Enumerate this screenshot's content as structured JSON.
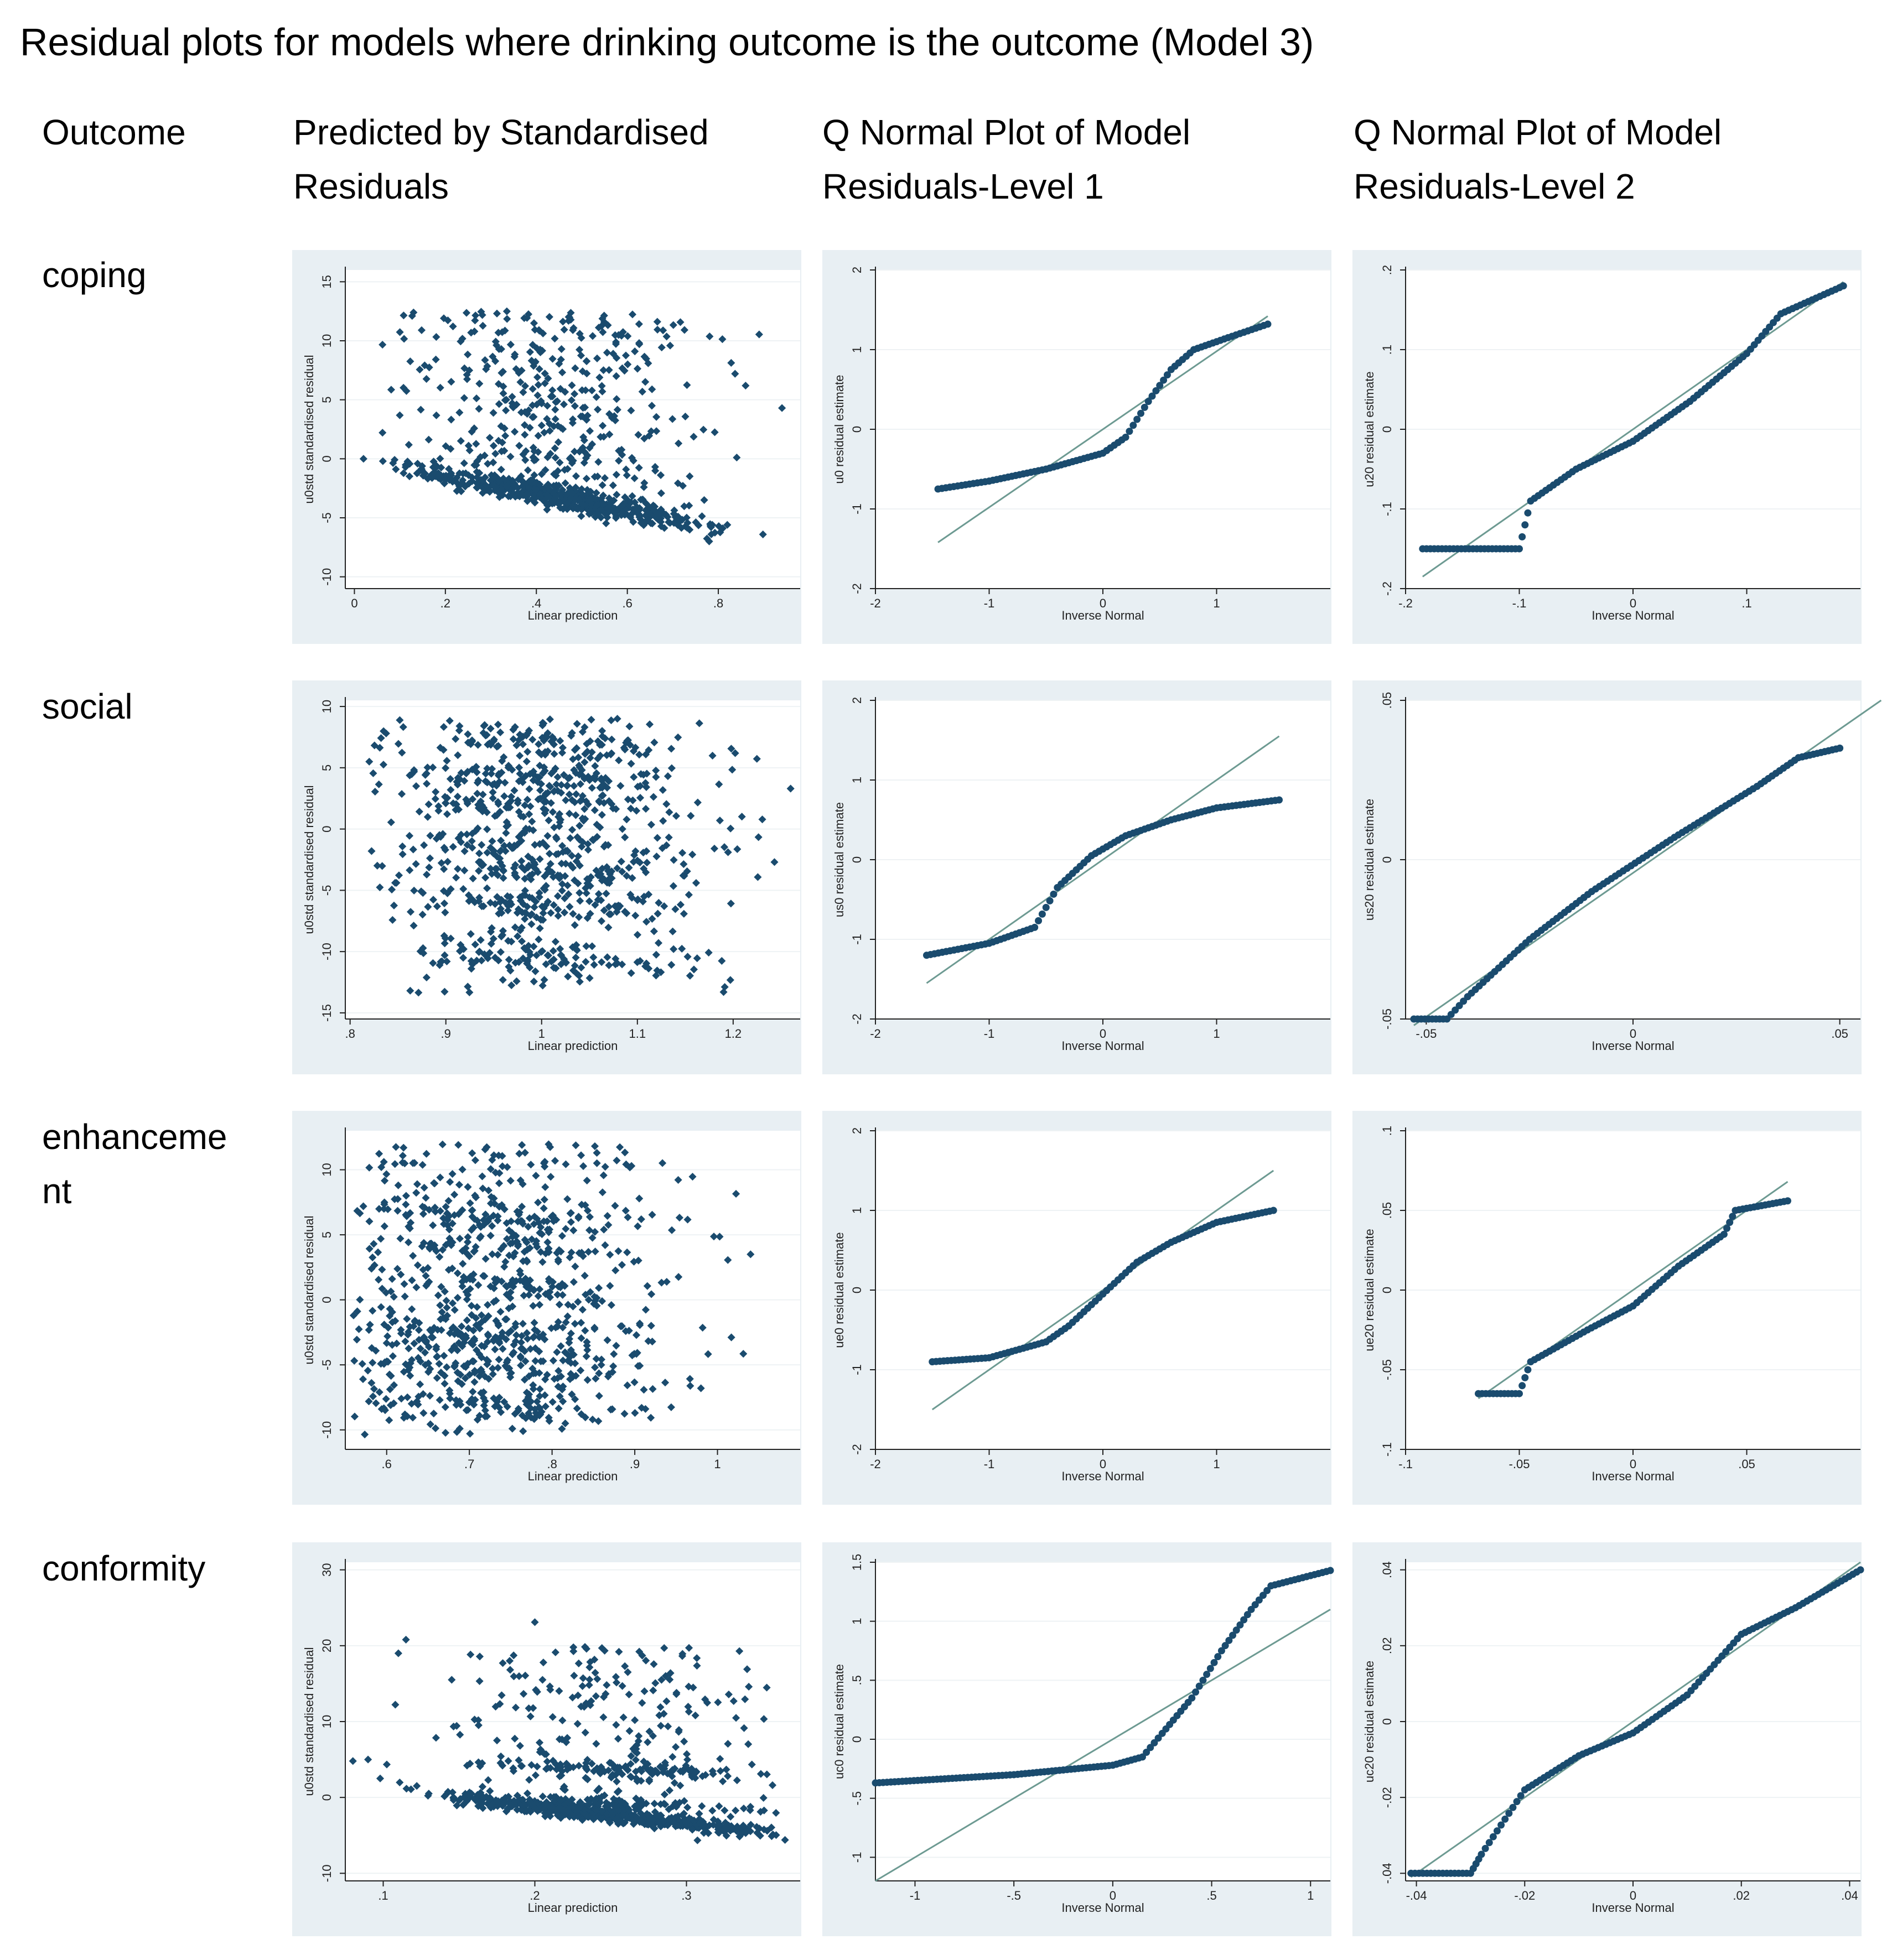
{
  "title": "Residual plots for models where drinking outcome is the outcome (Model 3)",
  "headers": {
    "outcome": "Outcome",
    "col1": [
      "Predicted by Standardised",
      "Residuals"
    ],
    "col2": [
      "Q Normal Plot of Model",
      "Residuals-Level 1"
    ],
    "col3": [
      "Q Normal Plot of Model",
      "Residuals-Level 2"
    ]
  },
  "rows": [
    {
      "label": "coping"
    },
    {
      "label": "social"
    },
    {
      "label": "enhanceme nt"
    },
    {
      "label": "conformity"
    }
  ],
  "style": {
    "marker_color": "#1a4b6e",
    "line_color": "#6d9a92",
    "panel_bg": "#e8eff3"
  },
  "chart_data": [
    {
      "type": "scatter",
      "id": "coping-pred",
      "xlabel": "Linear prediction",
      "ylabel": "u0std standardised residual",
      "xlim": [
        -0.02,
        0.98
      ],
      "ylim": [
        -11,
        16
      ],
      "xticks": [
        0,
        0.2,
        0.4,
        0.6,
        0.8
      ],
      "xticklabels": [
        "0",
        ".2",
        ".4",
        ".6",
        ".8"
      ],
      "yticks": [
        -10,
        -5,
        0,
        5,
        10,
        15
      ],
      "yticklabels": [
        "-10",
        "-5",
        "0",
        "5",
        "10",
        "15"
      ],
      "dist": {
        "xmin": 0.06,
        "xmax": 0.9,
        "xmode": 0.45,
        "band_intercept": -0.4,
        "band_slope": -7.5,
        "spread_lo": -7,
        "spread_hi": 12.5
      },
      "outliers": [
        [
          0.13,
          12.4
        ],
        [
          0.02,
          0
        ],
        [
          0.94,
          4.3
        ],
        [
          0.86,
          6.2
        ],
        [
          0.78,
          -7
        ]
      ]
    },
    {
      "type": "qq",
      "id": "coping-l1",
      "xlabel": "Inverse Normal",
      "ylabel": "u0 residual estimate",
      "xlim": [
        -2,
        2
      ],
      "ylim": [
        -2,
        2
      ],
      "xticks": [
        -2,
        -1,
        0,
        1
      ],
      "xticklabels": [
        "-2",
        "-1",
        "0",
        "1"
      ],
      "yticks": [
        -2,
        -1,
        0,
        1,
        2
      ],
      "yticklabels": [
        "-2",
        "-1",
        "0",
        "1",
        "2"
      ],
      "ref_line": [
        [
          -1.45,
          -1.42
        ],
        [
          1.45,
          1.42
        ]
      ],
      "curve": [
        [
          -1.45,
          -0.75
        ],
        [
          -1.0,
          -0.65
        ],
        [
          -0.5,
          -0.5
        ],
        [
          0.0,
          -0.3
        ],
        [
          0.2,
          -0.1
        ],
        [
          0.4,
          0.35
        ],
        [
          0.6,
          0.75
        ],
        [
          0.8,
          1.0
        ],
        [
          1.1,
          1.15
        ],
        [
          1.45,
          1.32
        ]
      ]
    },
    {
      "type": "qq",
      "id": "coping-l2",
      "xlabel": "Inverse Normal",
      "ylabel": "u20 residual estimate",
      "xlim": [
        -0.2,
        0.2
      ],
      "ylim": [
        -0.2,
        0.2
      ],
      "xticks": [
        -0.2,
        -0.1,
        0,
        0.1
      ],
      "xticklabels": [
        "-.2",
        "-.1",
        "0",
        ".1"
      ],
      "yticks": [
        -0.2,
        -0.1,
        0,
        0.1,
        0.2
      ],
      "yticklabels": [
        "-.2",
        "-.1",
        "0",
        ".1",
        ".2"
      ],
      "ref_line": [
        [
          -0.185,
          -0.185
        ],
        [
          0.185,
          0.185
        ]
      ],
      "curve": [
        [
          -0.185,
          -0.15
        ],
        [
          -0.1,
          -0.15
        ],
        [
          -0.09,
          -0.09
        ],
        [
          -0.05,
          -0.05
        ],
        [
          0,
          -0.015
        ],
        [
          0.05,
          0.035
        ],
        [
          0.1,
          0.095
        ],
        [
          0.13,
          0.145
        ],
        [
          0.185,
          0.18
        ]
      ]
    },
    {
      "type": "scatter",
      "id": "social-pred",
      "xlabel": "Linear prediction",
      "ylabel": "u0std standardised residual",
      "xlim": [
        0.795,
        1.27
      ],
      "ylim": [
        -15.5,
        10.5
      ],
      "xticks": [
        0.8,
        0.9,
        1.0,
        1.1,
        1.2
      ],
      "xticklabels": [
        ".8",
        ".9",
        "1",
        "1.1",
        "1.2"
      ],
      "yticks": [
        -15,
        -10,
        -5,
        0,
        5,
        10
      ],
      "yticklabels": [
        "-15",
        "-10",
        "-5",
        "0",
        "5",
        "10"
      ],
      "dist": {
        "xmin": 0.82,
        "xmax": 1.25,
        "xmode": 1.0,
        "bands": [
          7,
          4,
          2,
          -1.5,
          -3.5,
          -6,
          -10.5
        ],
        "spread_lo": -13.5,
        "spread_hi": 9
      },
      "outliers": [
        [
          0.82,
          5.5
        ],
        [
          1.19,
          -13.3
        ],
        [
          1.26,
          3.3
        ]
      ]
    },
    {
      "type": "qq",
      "id": "social-l1",
      "xlabel": "Inverse Normal",
      "ylabel": "us0 residual estimate",
      "xlim": [
        -2,
        2
      ],
      "ylim": [
        -2,
        2
      ],
      "xticks": [
        -2,
        -1,
        0,
        1
      ],
      "xticklabels": [
        "-2",
        "-1",
        "0",
        "1"
      ],
      "yticks": [
        -2,
        -1,
        0,
        1,
        2
      ],
      "yticklabels": [
        "-2",
        "-1",
        "0",
        "1",
        "2"
      ],
      "ref_line": [
        [
          -1.55,
          -1.55
        ],
        [
          1.55,
          1.55
        ]
      ],
      "curve": [
        [
          -1.55,
          -1.2
        ],
        [
          -1.0,
          -1.05
        ],
        [
          -0.6,
          -0.85
        ],
        [
          -0.4,
          -0.35
        ],
        [
          -0.1,
          0.05
        ],
        [
          0.2,
          0.3
        ],
        [
          0.6,
          0.5
        ],
        [
          1.0,
          0.65
        ],
        [
          1.55,
          0.75
        ]
      ]
    },
    {
      "type": "qq",
      "id": "social-l2",
      "xlabel": "Inverse Normal",
      "ylabel": "us20 residual estimate",
      "xlim": [
        -0.055,
        0.055
      ],
      "ylim": [
        -0.05,
        0.05
      ],
      "xticks": [
        -0.05,
        0,
        0.05
      ],
      "xticklabels": [
        "-.05",
        "0",
        ".05"
      ],
      "yticks": [
        -0.05,
        0,
        0.05
      ],
      "yticklabels": [
        "-.05",
        "0",
        ".05"
      ],
      "ref_line": [
        [
          -0.053,
          -0.052
        ],
        [
          0.06,
          0.05
        ]
      ],
      "curve": [
        [
          -0.053,
          -0.05
        ],
        [
          -0.045,
          -0.05
        ],
        [
          -0.04,
          -0.043
        ],
        [
          -0.025,
          -0.025
        ],
        [
          -0.01,
          -0.01
        ],
        [
          0.01,
          0.007
        ],
        [
          0.03,
          0.023
        ],
        [
          0.04,
          0.032
        ],
        [
          0.05,
          0.035
        ]
      ]
    },
    {
      "type": "scatter",
      "id": "enh-pred",
      "xlabel": "Linear prediction",
      "ylabel": "u0std standardised residual",
      "xlim": [
        0.55,
        1.1
      ],
      "ylim": [
        -11.5,
        13
      ],
      "xticks": [
        0.6,
        0.7,
        0.8,
        0.9,
        1.0
      ],
      "xticklabels": [
        ".6",
        ".7",
        ".8",
        ".9",
        "1"
      ],
      "yticks": [
        -10,
        -5,
        0,
        5,
        10
      ],
      "yticklabels": [
        "-10",
        "-5",
        "0",
        "5",
        "10"
      ],
      "dist": {
        "xmin": 0.56,
        "xmax": 1.05,
        "xmode": 0.72,
        "bands": [
          6.5,
          4,
          1,
          -2,
          -3.5,
          -5.5,
          -8
        ],
        "spread_lo": -10.5,
        "spread_hi": 12
      },
      "outliers": [
        [
          0.56,
          -1.2
        ],
        [
          0.98,
          -6.8
        ],
        [
          1.04,
          3.5
        ]
      ]
    },
    {
      "type": "qq",
      "id": "enh-l1",
      "xlabel": "Inverse Normal",
      "ylabel": "ue0 residual estimate",
      "xlim": [
        -2,
        2
      ],
      "ylim": [
        -2,
        2
      ],
      "xticks": [
        -2,
        -1,
        0,
        1
      ],
      "xticklabels": [
        "-2",
        "-1",
        "0",
        "1"
      ],
      "yticks": [
        -2,
        -1,
        0,
        1,
        2
      ],
      "yticklabels": [
        "-2",
        "-1",
        "0",
        "1",
        "2"
      ],
      "ref_line": [
        [
          -1.5,
          -1.5
        ],
        [
          1.5,
          1.5
        ]
      ],
      "curve": [
        [
          -1.5,
          -0.9
        ],
        [
          -1.0,
          -0.85
        ],
        [
          -0.5,
          -0.65
        ],
        [
          -0.3,
          -0.45
        ],
        [
          0,
          -0.05
        ],
        [
          0.3,
          0.35
        ],
        [
          0.6,
          0.6
        ],
        [
          1.0,
          0.85
        ],
        [
          1.5,
          1.0
        ]
      ]
    },
    {
      "type": "qq",
      "id": "enh-l2",
      "xlabel": "Inverse Normal",
      "ylabel": "ue20 residual estimate",
      "xlim": [
        -0.1,
        0.1
      ],
      "ylim": [
        -0.1,
        0.1
      ],
      "xticks": [
        -0.1,
        -0.05,
        0,
        0.05
      ],
      "xticklabels": [
        "-.1",
        "-.05",
        "0",
        ".05"
      ],
      "yticks": [
        -0.1,
        -0.05,
        0,
        0.05,
        0.1
      ],
      "yticklabels": [
        "-.1",
        "-.05",
        "0",
        ".05",
        ".1"
      ],
      "ref_line": [
        [
          -0.068,
          -0.068
        ],
        [
          0.068,
          0.068
        ]
      ],
      "curve": [
        [
          -0.068,
          -0.065
        ],
        [
          -0.05,
          -0.065
        ],
        [
          -0.045,
          -0.045
        ],
        [
          -0.02,
          -0.025
        ],
        [
          0,
          -0.01
        ],
        [
          0.02,
          0.015
        ],
        [
          0.04,
          0.035
        ],
        [
          0.045,
          0.05
        ],
        [
          0.068,
          0.056
        ]
      ]
    },
    {
      "type": "scatter",
      "id": "conf-pred",
      "xlabel": "Linear prediction",
      "ylabel": "u0std standardised residual",
      "xlim": [
        0.075,
        0.375
      ],
      "ylim": [
        -11,
        31
      ],
      "xticks": [
        0.1,
        0.2,
        0.3
      ],
      "xticklabels": [
        ".1",
        ".2",
        ".3"
      ],
      "yticks": [
        -10,
        0,
        10,
        20,
        30
      ],
      "yticklabels": [
        "-10",
        "0",
        "10",
        "20",
        "30"
      ],
      "dist": {
        "xmin": 0.1,
        "xmax": 0.36,
        "xmode": 0.25,
        "band_intercept": 1.0,
        "band_slope": -22,
        "bands2": [
          0.5,
          5
        ],
        "spread_lo": -5,
        "spread_hi": 20
      },
      "outliers": [
        [
          0.08,
          4.8
        ],
        [
          0.09,
          5
        ],
        [
          0.115,
          20.8
        ],
        [
          0.11,
          19
        ],
        [
          0.098,
          2.5
        ],
        [
          0.2,
          23.1
        ],
        [
          0.365,
          -5.6
        ],
        [
          0.34,
          16.9
        ]
      ]
    },
    {
      "type": "qq",
      "id": "conf-l1",
      "xlabel": "Inverse Normal",
      "ylabel": "uc0 residual estimate",
      "xlim": [
        -1.2,
        1.1
      ],
      "ylim": [
        -1.2,
        1.5
      ],
      "xticks": [
        -1,
        -0.5,
        0,
        0.5,
        1
      ],
      "xticklabels": [
        "-1",
        "-.5",
        "0",
        ".5",
        "1"
      ],
      "yticks": [
        -1,
        -0.5,
        0,
        0.5,
        1,
        1.5
      ],
      "yticklabels": [
        "-1",
        "-.5",
        "0",
        ".5",
        "1",
        "1.5"
      ],
      "ref_line": [
        [
          -1.2,
          -1.2
        ],
        [
          1.1,
          1.1
        ]
      ],
      "curve": [
        [
          -1.2,
          -0.37
        ],
        [
          -0.5,
          -0.3
        ],
        [
          0,
          -0.22
        ],
        [
          0.15,
          -0.15
        ],
        [
          0.25,
          0.05
        ],
        [
          0.4,
          0.35
        ],
        [
          0.55,
          0.75
        ],
        [
          0.7,
          1.1
        ],
        [
          0.8,
          1.3
        ],
        [
          1.1,
          1.43
        ]
      ]
    },
    {
      "type": "qq",
      "id": "conf-l2",
      "xlabel": "Inverse Normal",
      "ylabel": "uc20 residual estimate",
      "xlim": [
        -0.042,
        0.042
      ],
      "ylim": [
        -0.042,
        0.042
      ],
      "xticks": [
        -0.04,
        -0.02,
        0,
        0.02,
        0.04
      ],
      "xticklabels": [
        "-.04",
        "-.02",
        "0",
        ".02",
        ".04"
      ],
      "yticks": [
        -0.04,
        -0.02,
        0,
        0.02,
        0.04
      ],
      "yticklabels": [
        "-.04",
        "-.02",
        "0",
        ".02",
        ".04"
      ],
      "ref_line": [
        [
          -0.041,
          -0.041
        ],
        [
          0.042,
          0.042
        ]
      ],
      "curve": [
        [
          -0.041,
          -0.04
        ],
        [
          -0.03,
          -0.04
        ],
        [
          -0.028,
          -0.035
        ],
        [
          -0.02,
          -0.018
        ],
        [
          -0.01,
          -0.009
        ],
        [
          0,
          -0.003
        ],
        [
          0.01,
          0.007
        ],
        [
          0.02,
          0.023
        ],
        [
          0.03,
          0.03
        ],
        [
          0.042,
          0.04
        ]
      ]
    }
  ]
}
